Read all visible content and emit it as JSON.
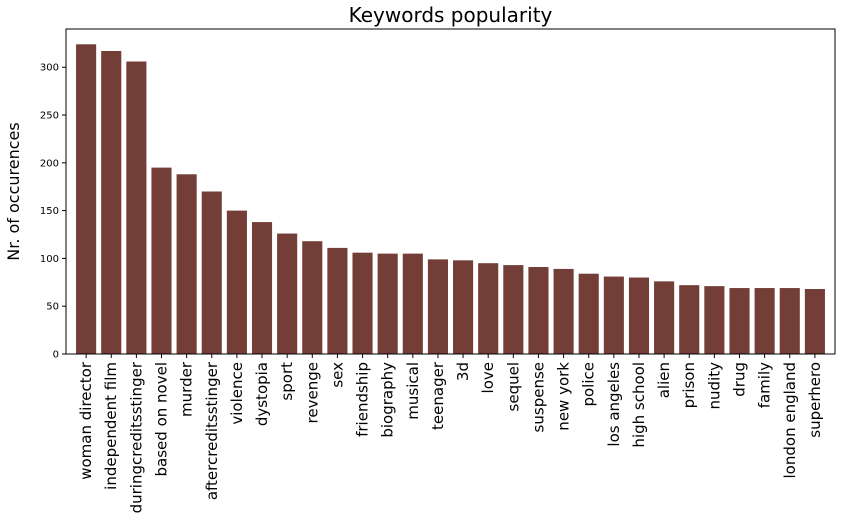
{
  "chart_data": {
    "type": "bar",
    "title": "Keywords popularity",
    "xlabel": "",
    "ylabel": "Nr. of occurences",
    "ylim": [
      0,
      340
    ],
    "yticks": [
      0,
      50,
      100,
      150,
      200,
      250,
      300
    ],
    "grid": false,
    "bar_color": "#733e37",
    "categories": [
      "woman director",
      "independent film",
      "duringcreditsstinger",
      "based on novel",
      "murder",
      "aftercreditsstinger",
      "violence",
      "dystopia",
      "sport",
      "revenge",
      "sex",
      "friendship",
      "biography",
      "musical",
      "teenager",
      "3d",
      "love",
      "sequel",
      "suspense",
      "new york",
      "police",
      "los angeles",
      "high school",
      "alien",
      "prison",
      "nudity",
      "drug",
      "family",
      "london england",
      "superhero"
    ],
    "values": [
      324,
      317,
      306,
      195,
      188,
      170,
      150,
      138,
      126,
      118,
      111,
      106,
      105,
      105,
      99,
      98,
      95,
      93,
      91,
      89,
      84,
      81,
      80,
      76,
      72,
      71,
      69,
      69,
      69,
      68
    ]
  }
}
